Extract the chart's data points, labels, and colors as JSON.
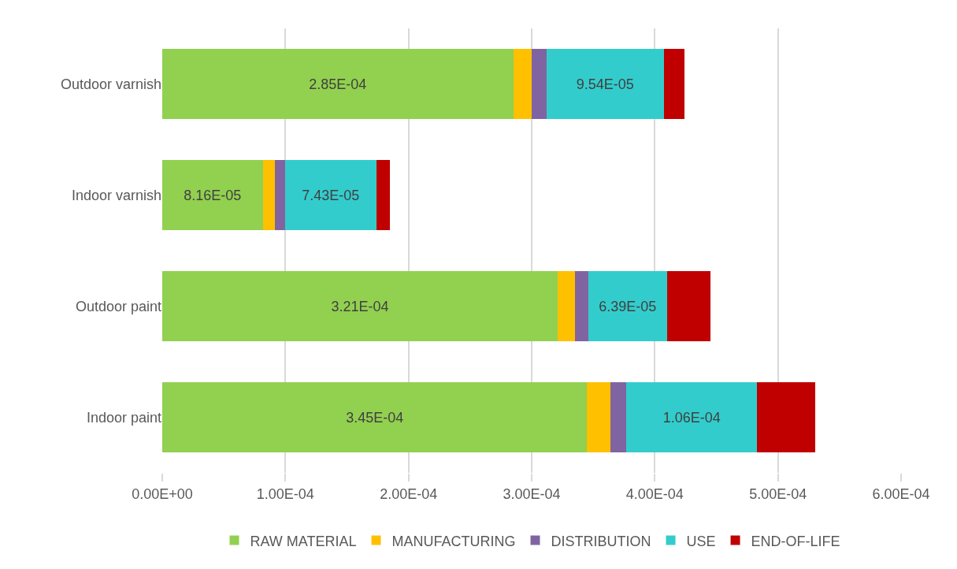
{
  "chart_data": {
    "type": "bar",
    "orientation": "horizontal",
    "stacked": true,
    "categories": [
      "Outdoor varnish",
      "Indoor varnish",
      "Outdoor paint",
      "Indoor paint"
    ],
    "series": [
      {
        "name": "RAW MATERIAL",
        "color": "#92d050",
        "values": [
          0.000285,
          8.16e-05,
          0.000321,
          0.000345
        ],
        "value_labels": [
          "2.85E-04",
          "8.16E-05",
          "3.21E-04",
          "3.45E-04"
        ]
      },
      {
        "name": "MANUFACTURING",
        "color": "#ffc000",
        "values": [
          1.5e-05,
          1e-05,
          1.4e-05,
          1.9e-05
        ]
      },
      {
        "name": "DISTRIBUTION",
        "color": "#8064a2",
        "values": [
          1.2e-05,
          8e-06,
          1.1e-05,
          1.3e-05
        ]
      },
      {
        "name": "USE",
        "color": "#33cccc",
        "values": [
          9.54e-05,
          7.43e-05,
          6.39e-05,
          0.000106
        ],
        "value_labels": [
          "9.54E-05",
          "7.43E-05",
          "6.39E-05",
          "1.06E-04"
        ]
      },
      {
        "name": "END-OF-LIFE",
        "color": "#c00000",
        "values": [
          1.7e-05,
          1.1e-05,
          3.5e-05,
          4.7e-05
        ]
      }
    ],
    "xlim": [
      0,
      0.0006
    ],
    "xticks": [
      {
        "value": 0,
        "label": "0.00E+00"
      },
      {
        "value": 0.0001,
        "label": "1.00E-04"
      },
      {
        "value": 0.0002,
        "label": "2.00E-04"
      },
      {
        "value": 0.0003,
        "label": "3.00E-04"
      },
      {
        "value": 0.0004,
        "label": "4.00E-04"
      },
      {
        "value": 0.0005,
        "label": "5.00E-04"
      },
      {
        "value": 0.0006,
        "label": "6.00E-04"
      }
    ],
    "grid": "x",
    "legend": "bottom"
  }
}
